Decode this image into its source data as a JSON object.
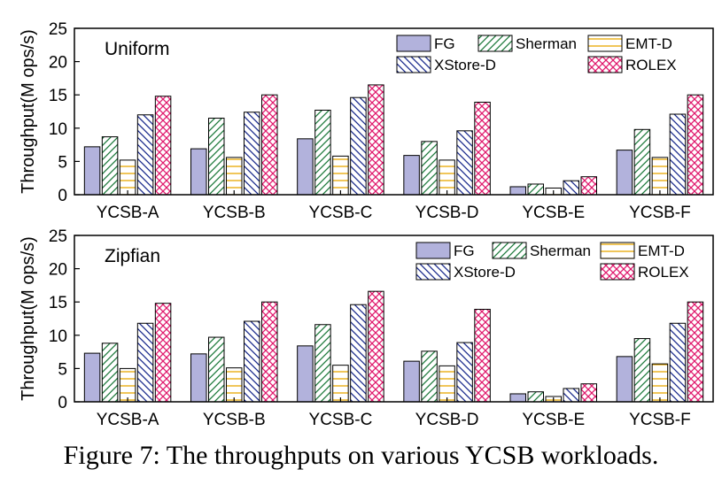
{
  "figure": {
    "caption": "Figure 7: The throughputs on various YCSB workloads."
  },
  "styles": {
    "FG": {
      "fill": "#b2b2dc",
      "pattern": "solid",
      "stroke": "#000000"
    },
    "Sherman": {
      "fill": "#ffffff",
      "pattern": "diagonal",
      "stroke": "#1e7a3c"
    },
    "EMT-D": {
      "fill": "#ffffff",
      "pattern": "horizontal",
      "stroke": "#e8a800"
    },
    "XStore-D": {
      "fill": "#ffffff",
      "pattern": "backdiagonal",
      "stroke": "#1a2a8c"
    },
    "ROLEX": {
      "fill": "#ffffff",
      "pattern": "crosshatch",
      "stroke": "#e0186c"
    }
  },
  "chart_data": [
    {
      "type": "bar",
      "title": "Uniform",
      "ylabel": "Throughput(M ops/s)",
      "xlabel": "",
      "ylim": [
        0,
        25
      ],
      "yticks": [
        0,
        5,
        10,
        15,
        20,
        25
      ],
      "categories": [
        "YCSB-A",
        "YCSB-B",
        "YCSB-C",
        "YCSB-D",
        "YCSB-E",
        "YCSB-F"
      ],
      "legend_position": "top-right",
      "series": [
        {
          "name": "FG",
          "values": [
            7.2,
            6.9,
            8.4,
            5.9,
            1.2,
            6.7
          ]
        },
        {
          "name": "Sherman",
          "values": [
            8.7,
            11.5,
            12.7,
            8.0,
            1.6,
            9.8
          ]
        },
        {
          "name": "EMT-D",
          "values": [
            5.2,
            5.6,
            5.8,
            5.2,
            1.0,
            5.6
          ]
        },
        {
          "name": "XStore-D",
          "values": [
            12.0,
            12.4,
            14.6,
            9.6,
            2.1,
            12.1
          ]
        },
        {
          "name": "ROLEX",
          "values": [
            14.8,
            15.0,
            16.5,
            13.9,
            2.7,
            15.0
          ]
        }
      ]
    },
    {
      "type": "bar",
      "title": "Zipfian",
      "ylabel": "Throughput(M ops/s)",
      "xlabel": "",
      "ylim": [
        0,
        25
      ],
      "yticks": [
        0,
        5,
        10,
        15,
        20,
        25
      ],
      "categories": [
        "YCSB-A",
        "YCSB-B",
        "YCSB-C",
        "YCSB-D",
        "YCSB-E",
        "YCSB-F"
      ],
      "legend_position": "top-right",
      "series": [
        {
          "name": "FG",
          "values": [
            7.3,
            7.2,
            8.4,
            6.1,
            1.2,
            6.8
          ]
        },
        {
          "name": "Sherman",
          "values": [
            8.8,
            9.7,
            11.6,
            7.6,
            1.5,
            9.5
          ]
        },
        {
          "name": "EMT-D",
          "values": [
            5.0,
            5.1,
            5.5,
            5.4,
            0.8,
            5.7
          ]
        },
        {
          "name": "XStore-D",
          "values": [
            11.8,
            12.1,
            14.6,
            8.9,
            2.0,
            11.8
          ]
        },
        {
          "name": "ROLEX",
          "values": [
            14.8,
            15.0,
            16.6,
            13.9,
            2.7,
            15.0
          ]
        }
      ]
    }
  ]
}
